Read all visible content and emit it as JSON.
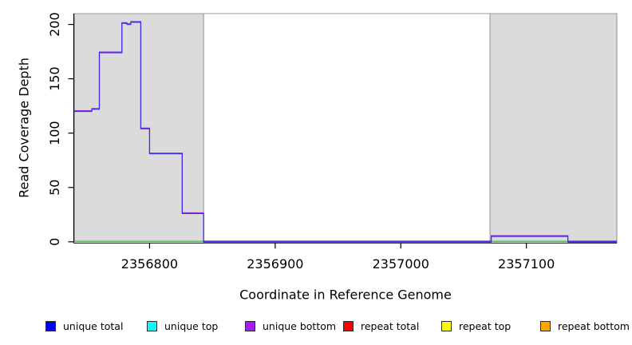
{
  "chart_data": {
    "type": "line",
    "subtype": "step",
    "title": "",
    "xlabel": "Coordinate in Reference Genome",
    "ylabel": "Read Coverage Depth",
    "xlim": [
      2356740,
      2357172
    ],
    "ylim": [
      0,
      210
    ],
    "x_ticks": [
      2356800,
      2356900,
      2357000,
      2357100
    ],
    "y_ticks": [
      0,
      50,
      100,
      150,
      200
    ],
    "grid": false,
    "legend_position": "bottom",
    "shaded_regions": {
      "fill": "#DBDBDB",
      "border": "#8F8F8F",
      "ranges": [
        [
          2356740,
          2356843
        ],
        [
          2357071,
          2357172
        ]
      ]
    },
    "series": [
      {
        "name": "coverage-depth-step",
        "color_main": "#3A2BEE",
        "color_fringe": "#8F33E0",
        "points": [
          [
            2356740,
            120
          ],
          [
            2356754,
            122
          ],
          [
            2356760,
            174
          ],
          [
            2356778,
            201
          ],
          [
            2356782,
            200
          ],
          [
            2356785,
            202
          ],
          [
            2356793,
            104
          ],
          [
            2356800,
            81
          ],
          [
            2356826,
            26
          ],
          [
            2356843,
            0
          ],
          [
            2357072,
            5
          ],
          [
            2357133,
            0
          ],
          [
            2357172,
            0
          ]
        ]
      },
      {
        "name": "zero-depth-marker",
        "color_main": "#53B55F",
        "color_fringe": "#ECEC86",
        "value": 0,
        "segments": [
          [
            2356740,
            2356843
          ],
          [
            2357072,
            2357133
          ]
        ]
      }
    ],
    "legend": [
      {
        "label": "unique total",
        "color": "#0000FF"
      },
      {
        "label": "unique top",
        "color": "#00FFFF"
      },
      {
        "label": "unique bottom",
        "color": "#A020F0"
      },
      {
        "label": "repeat total",
        "color": "#FF0000"
      },
      {
        "label": "repeat top",
        "color": "#FFFF00"
      },
      {
        "label": "repeat bottom",
        "color": "#FFA500"
      }
    ],
    "axis_color": "#000000",
    "box_top_color": "#9B9B9B",
    "background": "#FFFFFF"
  }
}
